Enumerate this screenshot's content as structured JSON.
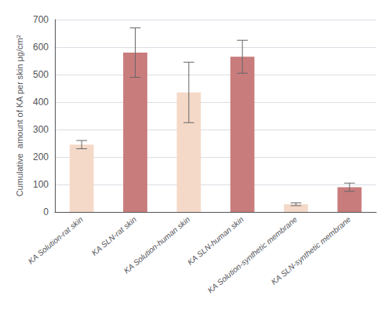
{
  "chart_data": {
    "type": "bar",
    "ylabel": "Cumulative  amount of KA per skin μg/cm²",
    "categories": [
      "KA Solution-rat skin",
      "KA SLN-rat skin",
      "KA Solution-human skin",
      "KA SLN-human skin",
      "KA Solution-synthetic membrane",
      "KA SLN-synthetic membrane"
    ],
    "values": [
      245,
      580,
      435,
      565,
      28,
      90
    ],
    "errors": [
      15,
      90,
      110,
      60,
      5,
      15
    ],
    "colors": [
      "#f5d9c8",
      "#c97c7c",
      "#f5d9c8",
      "#c97c7c",
      "#f5d9c8",
      "#c97c7c"
    ],
    "ylim": [
      0,
      700
    ],
    "yticks": [
      0,
      100,
      200,
      300,
      400,
      500,
      600,
      700
    ],
    "grid": true
  }
}
